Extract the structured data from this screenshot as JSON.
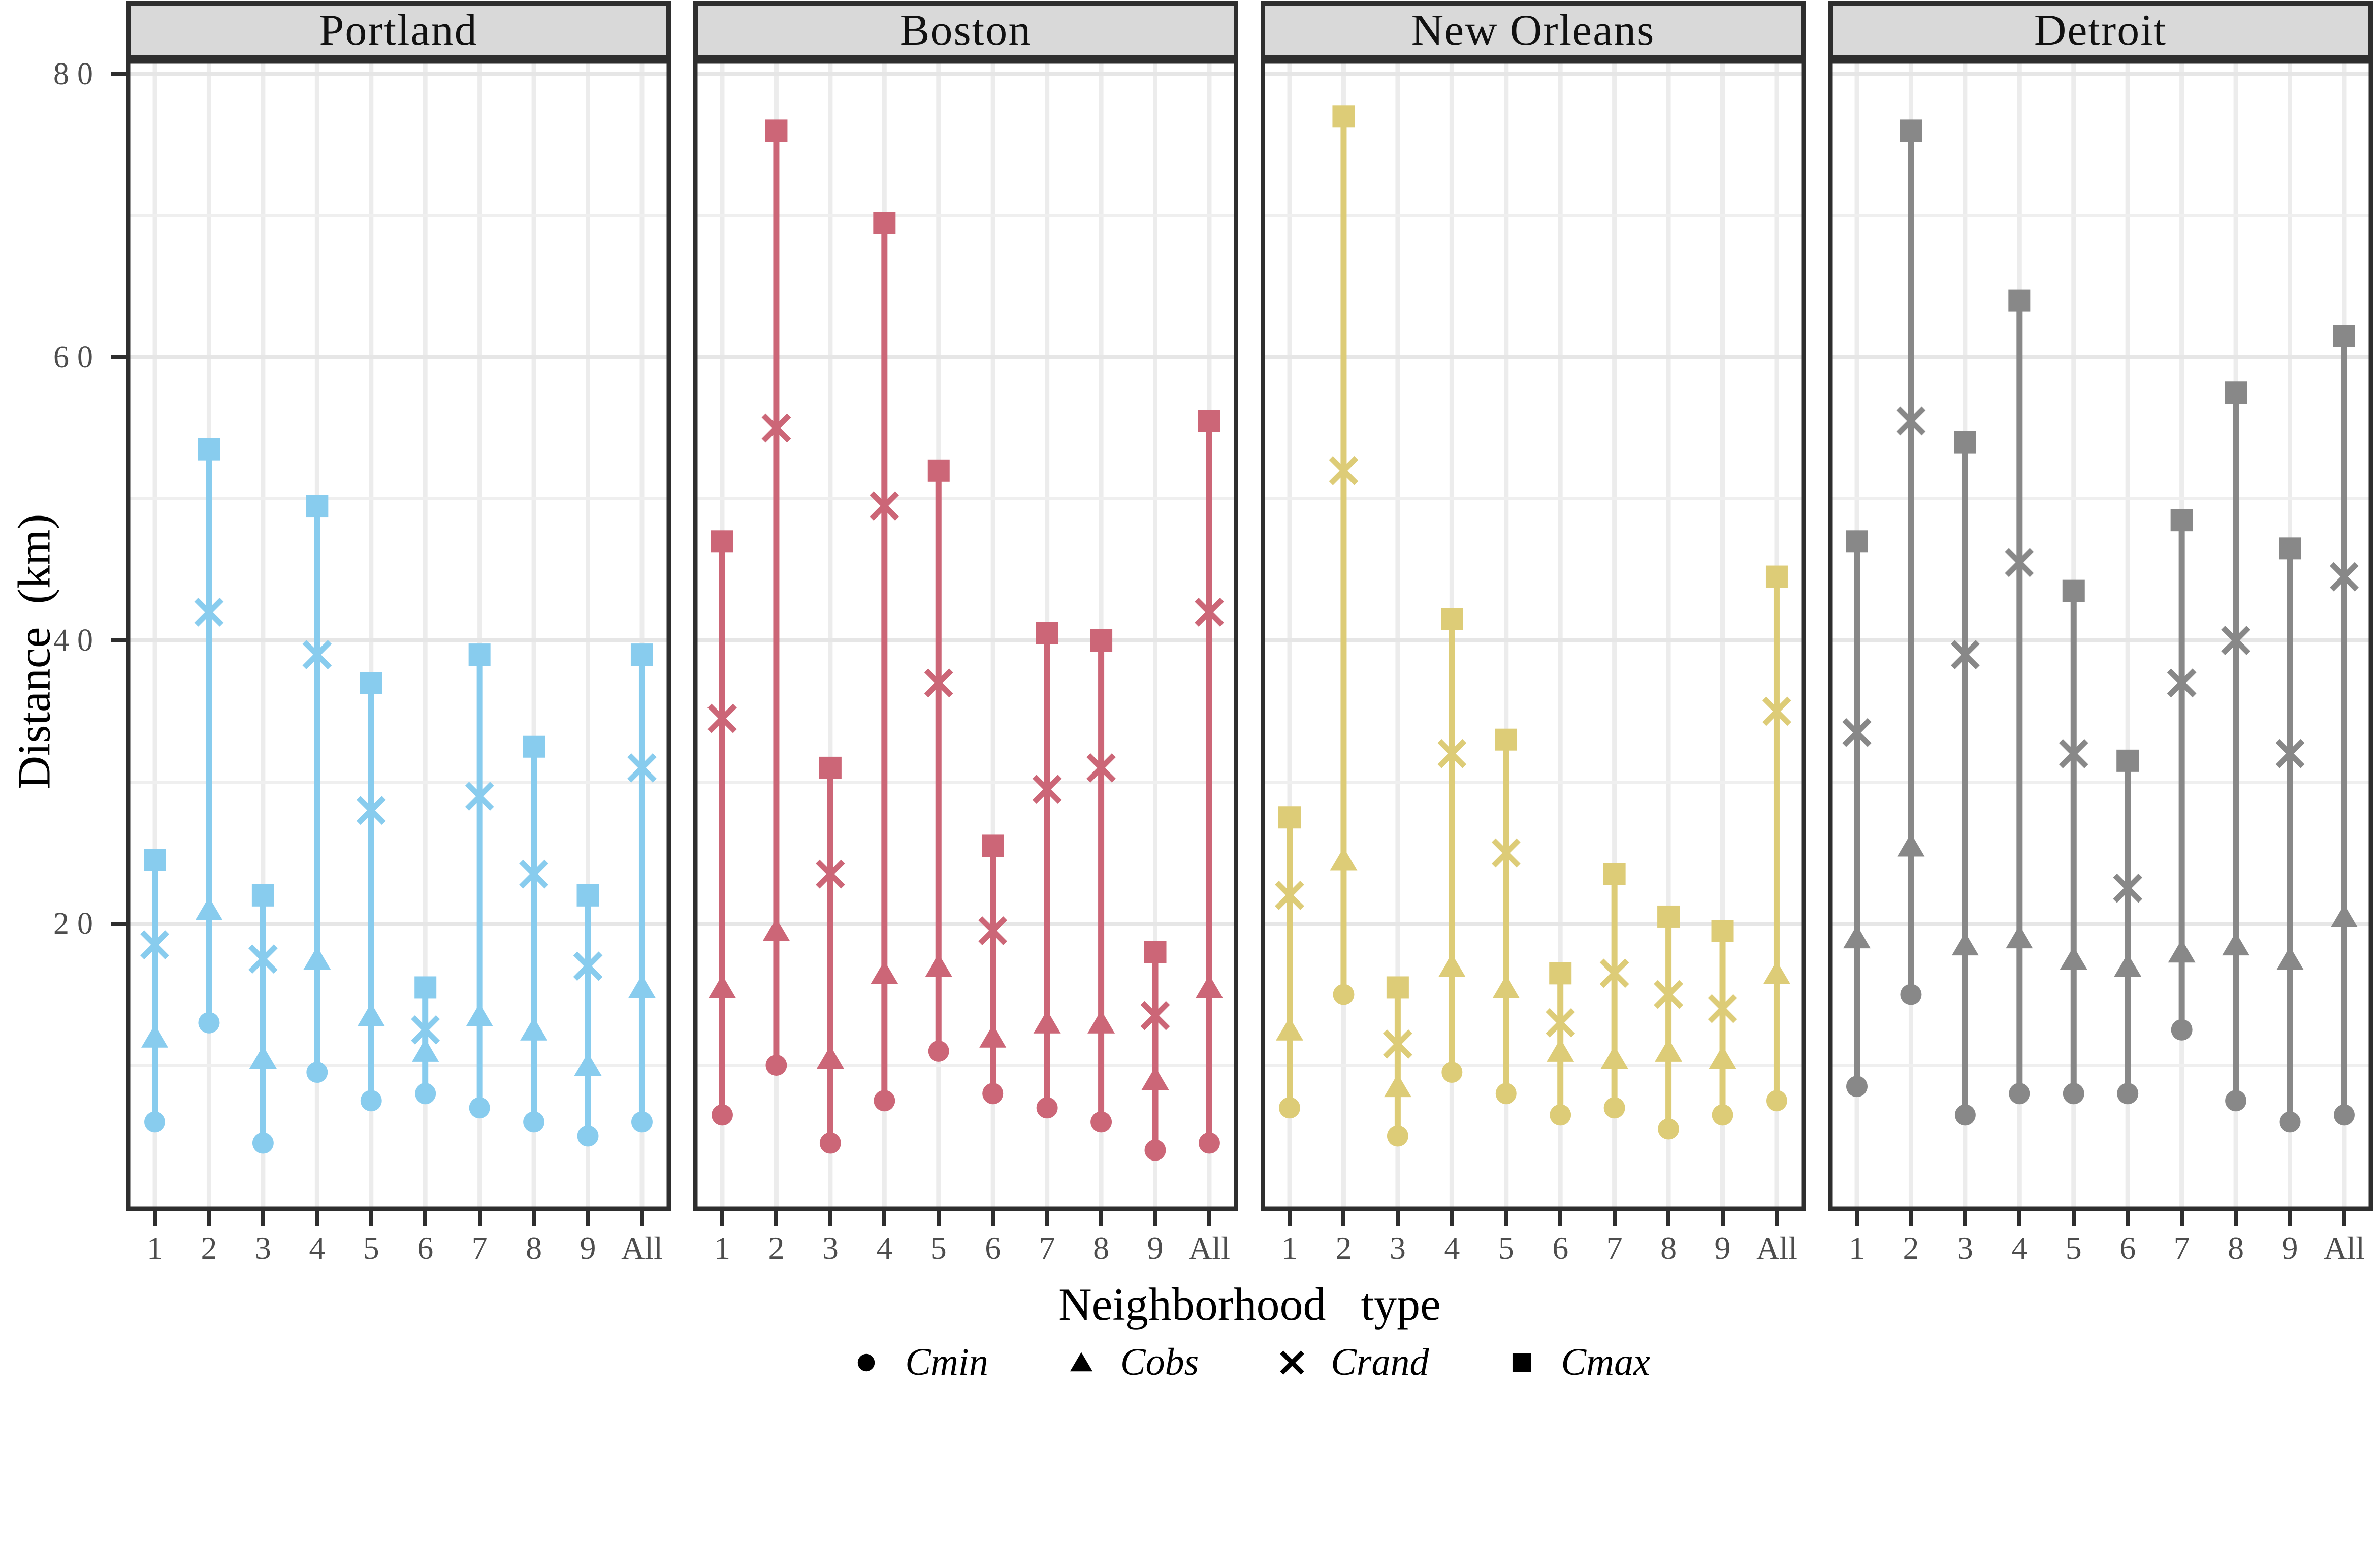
{
  "chart_data": {
    "type": "scatter",
    "subtype": "faceted-range-dumbbell",
    "title": "",
    "xlabel": "Neighborhood   type",
    "ylabel": "Distance  (km)",
    "categories": [
      "1",
      "2",
      "3",
      "4",
      "5",
      "6",
      "7",
      "8",
      "9",
      "All"
    ],
    "ylim": [
      0,
      81
    ],
    "yticks_major": [
      20,
      40,
      60,
      80
    ],
    "yticks_minor": [
      10,
      30,
      50,
      70
    ],
    "grid": "on",
    "legend_position": "bottom",
    "legend_marker_color": "#000000",
    "legend": [
      {
        "label": "Cmin",
        "marker": "circle"
      },
      {
        "label": "Cobs",
        "marker": "triangle"
      },
      {
        "label": "Crand",
        "marker": "cross"
      },
      {
        "label": "Cmax",
        "marker": "square"
      }
    ],
    "facets": [
      {
        "city": "Portland",
        "color": "#88CCEE",
        "series": [
          {
            "name": "Cmin",
            "marker": "circle",
            "values": [
              6,
              13,
              4.5,
              9.5,
              7.5,
              8,
              7,
              6,
              5,
              6
            ]
          },
          {
            "name": "Cobs",
            "marker": "triangle",
            "values": [
              12,
              21,
              10.5,
              17.5,
              13.5,
              11,
              13.5,
              12.5,
              10,
              15.5
            ]
          },
          {
            "name": "Crand",
            "marker": "cross",
            "values": [
              18.5,
              42,
              17.5,
              39,
              28,
              12.5,
              29,
              23.5,
              17,
              31
            ]
          },
          {
            "name": "Cmax",
            "marker": "square",
            "values": [
              24.5,
              53.5,
              22,
              49.5,
              37,
              15.5,
              39,
              32.5,
              22,
              39
            ]
          }
        ]
      },
      {
        "city": "Boston",
        "color": "#CC6677",
        "series": [
          {
            "name": "Cmin",
            "marker": "circle",
            "values": [
              6.5,
              10,
              4.5,
              7.5,
              11,
              8,
              7,
              6,
              4,
              4.5
            ]
          },
          {
            "name": "Cobs",
            "marker": "triangle",
            "values": [
              15.5,
              19.5,
              10.5,
              16.5,
              17,
              12,
              13,
              13,
              9,
              15.5
            ]
          },
          {
            "name": "Crand",
            "marker": "cross",
            "values": [
              34.5,
              55,
              23.5,
              49.5,
              37,
              19.5,
              29.5,
              31,
              13.5,
              42
            ]
          },
          {
            "name": "Cmax",
            "marker": "square",
            "values": [
              47,
              76,
              31,
              69.5,
              52,
              25.5,
              40.5,
              40,
              18,
              55.5
            ]
          }
        ]
      },
      {
        "city": "New Orleans",
        "color": "#DDCC77",
        "series": [
          {
            "name": "Cmin",
            "marker": "circle",
            "values": [
              7,
              15,
              5,
              9.5,
              8,
              6.5,
              7,
              5.5,
              6.5,
              7.5
            ]
          },
          {
            "name": "Cobs",
            "marker": "triangle",
            "values": [
              12.5,
              24.5,
              8.5,
              17,
              15.5,
              11,
              10.5,
              11,
              10.5,
              16.5
            ]
          },
          {
            "name": "Crand",
            "marker": "cross",
            "values": [
              22,
              52,
              11.5,
              32,
              25,
              13,
              16.5,
              15,
              14,
              35
            ]
          },
          {
            "name": "Cmax",
            "marker": "square",
            "values": [
              27.5,
              77,
              15.5,
              41.5,
              33,
              16.5,
              23.5,
              20.5,
              19.5,
              44.5
            ]
          }
        ]
      },
      {
        "city": "Detroit",
        "color": "#888888",
        "series": [
          {
            "name": "Cmin",
            "marker": "circle",
            "values": [
              8.5,
              15,
              6.5,
              8,
              8,
              8,
              12.5,
              7.5,
              6,
              6.5
            ]
          },
          {
            "name": "Cobs",
            "marker": "triangle",
            "values": [
              19,
              25.5,
              18.5,
              19,
              17.5,
              17,
              18,
              18.5,
              17.5,
              20.5
            ]
          },
          {
            "name": "Crand",
            "marker": "cross",
            "values": [
              33.5,
              55.5,
              39,
              45.5,
              32,
              22.5,
              37,
              40,
              32,
              44.5
            ]
          },
          {
            "name": "Cmax",
            "marker": "square",
            "values": [
              47,
              76,
              54,
              64,
              43.5,
              31.5,
              48.5,
              57.5,
              46.5,
              61.5
            ]
          }
        ]
      }
    ],
    "theme": {
      "strip_bg": "#D9D9D9",
      "panel_border": "#2E2E2E",
      "grid_major": "#E6E6E6",
      "grid_minor": "#EFEFEF",
      "grid_vertical": "#ECECEC",
      "axis_text": "#4D4D4D",
      "title_text": "#000000"
    }
  }
}
